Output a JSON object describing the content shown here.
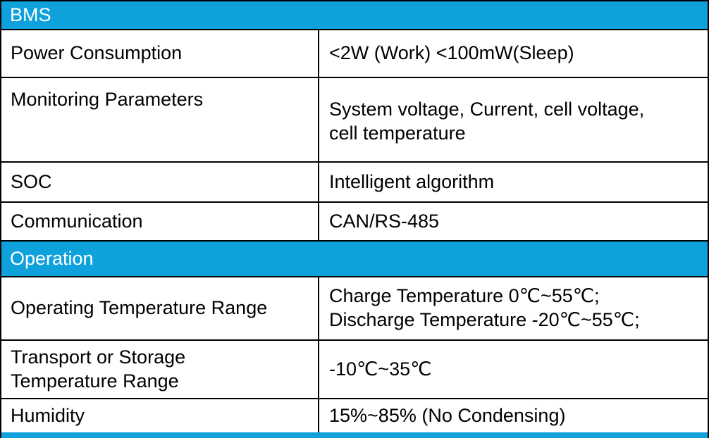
{
  "sections": {
    "bms": {
      "title": "BMS",
      "rows": [
        {
          "label": "Power Consumption",
          "value": [
            "<2W (Work) <100mW(Sleep)"
          ]
        },
        {
          "label": "Monitoring Parameters",
          "value": [
            "System voltage, Current, cell voltage,",
            "cell temperature"
          ]
        },
        {
          "label": "SOC",
          "value": [
            "Intelligent algorithm"
          ]
        },
        {
          "label": "Communication",
          "value": [
            "CAN/RS-485"
          ]
        }
      ]
    },
    "operation": {
      "title": "Operation",
      "rows": [
        {
          "label": "Operating Temperature Range",
          "value": [
            "Charge Temperature 0℃~55℃;",
            "Discharge Temperature -20℃~55℃;"
          ]
        },
        {
          "label": [
            "Transport or Storage",
            "Temperature Range"
          ],
          "value": [
            "-10℃~35℃"
          ]
        },
        {
          "label": "Humidity",
          "value": [
            "15%~85% (No Condensing)"
          ]
        }
      ]
    }
  },
  "colors": {
    "header_bg": "#0fa1dc",
    "header_text": "#ffffff",
    "border": "#000000"
  }
}
